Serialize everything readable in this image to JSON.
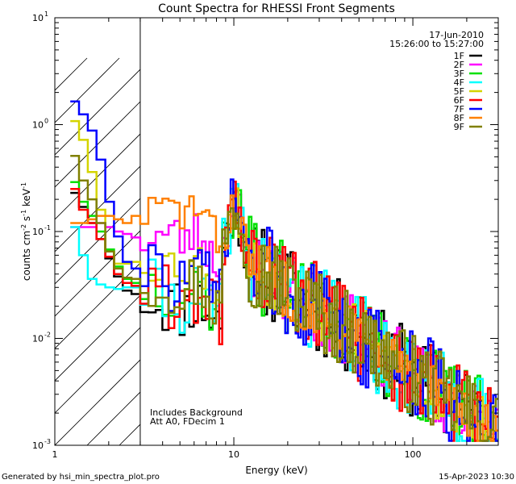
{
  "chart_data": {
    "type": "line",
    "title": "Count Spectra for RHESSI Front Segments",
    "xlabel": "Energy (keV)",
    "ylabel": "counts cm",
    "ylabel_exp1": "-2",
    "ylabel_mid": " s",
    "ylabel_exp2": "-1",
    "ylabel_unit": " keV",
    "ylabel_exp3": "-1",
    "x_scale": "log",
    "y_scale": "log",
    "xlim": [
      1,
      300
    ],
    "ylim": [
      0.001,
      10
    ],
    "x_ticks": [
      {
        "value": 1,
        "label": "1"
      },
      {
        "value": 10,
        "label": "10"
      },
      {
        "value": 100,
        "label": "100"
      }
    ],
    "y_ticks": [
      {
        "value": 0.001,
        "base": "10",
        "exp": "-3"
      },
      {
        "value": 0.01,
        "base": "10",
        "exp": "-2"
      },
      {
        "value": 0.1,
        "base": "10",
        "exp": "-1"
      },
      {
        "value": 1,
        "base": "10",
        "exp": "0"
      },
      {
        "value": 10,
        "base": "10",
        "exp": "1"
      }
    ],
    "date": "17-Jun-2010",
    "time_range": "15:26:00 to 15:27:00",
    "hatched_region_keV": [
      1,
      3
    ],
    "annotations": [
      "Includes Background",
      "Att A0, FDecim 1"
    ],
    "series": [
      {
        "name": "1F",
        "color": "#000000",
        "low": [
          0.23,
          0.17,
          0.12,
          0.085,
          0.056,
          0.038,
          0.028,
          0.026
        ],
        "seed": 11,
        "bump": 0.0,
        "noise": 0.3
      },
      {
        "name": "2F",
        "color": "#ff00ff",
        "low": [
          0.11,
          0.11,
          0.11,
          0.12,
          0.11,
          0.1,
          0.095,
          0.088
        ],
        "seed": 23,
        "bump": 0.05,
        "noise": 0.25
      },
      {
        "name": "3F",
        "color": "#00e000",
        "low": [
          0.29,
          0.19,
          0.14,
          0.1,
          0.068,
          0.047,
          0.036,
          0.033
        ],
        "seed": 37,
        "bump": 0.03,
        "noise": 0.3
      },
      {
        "name": "4F",
        "color": "#00ffff",
        "low": [
          0.11,
          0.06,
          0.036,
          0.032,
          0.03,
          0.029,
          0.03,
          0.03
        ],
        "seed": 41,
        "bump": 0.0,
        "noise": 0.3
      },
      {
        "name": "5F",
        "color": "#d4d400",
        "low": [
          1.08,
          0.72,
          0.36,
          0.16,
          0.065,
          0.05,
          0.05,
          0.052
        ],
        "seed": 53,
        "bump": 0.04,
        "noise": 0.22
      },
      {
        "name": "6F",
        "color": "#ff0000",
        "low": [
          0.25,
          0.16,
          0.12,
          0.085,
          0.058,
          0.04,
          0.033,
          0.031
        ],
        "seed": 61,
        "bump": 0.0,
        "noise": 0.32
      },
      {
        "name": "7F",
        "color": "#0000ff",
        "low": [
          1.65,
          1.25,
          0.88,
          0.47,
          0.19,
          0.09,
          0.052,
          0.045
        ],
        "seed": 73,
        "bump": 0.0,
        "noise": 0.32
      },
      {
        "name": "8F",
        "color": "#ff8000",
        "low": [
          0.12,
          0.12,
          0.13,
          0.14,
          0.14,
          0.13,
          0.12,
          0.14
        ],
        "seed": 83,
        "bump": 0.08,
        "noise": 0.2
      },
      {
        "name": "9F",
        "color": "#808000",
        "low": [
          0.51,
          0.3,
          0.2,
          0.12,
          0.065,
          0.045,
          0.037,
          0.036
        ],
        "seed": 97,
        "bump": 0.02,
        "noise": 0.28
      }
    ]
  },
  "footer": {
    "left": "Generated by hsi_min_spectra_plot.pro",
    "right": "15-Apr-2023 10:30"
  }
}
